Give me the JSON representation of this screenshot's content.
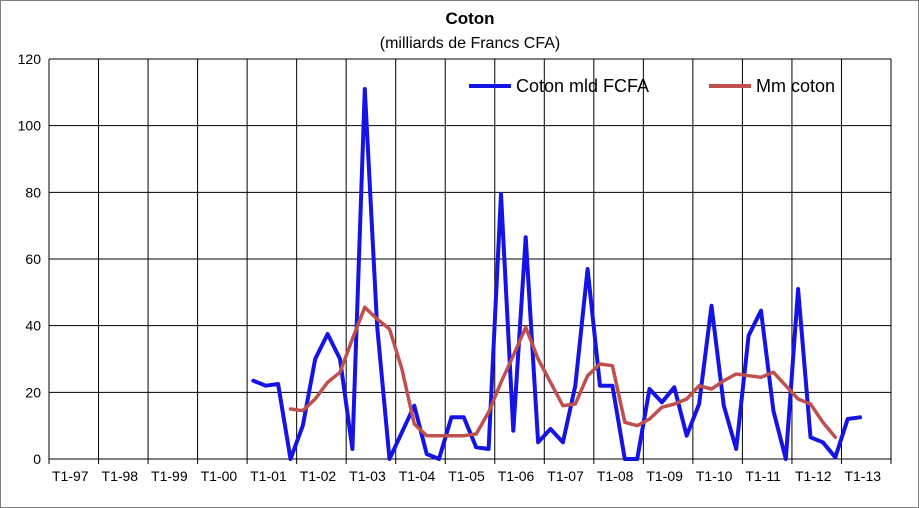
{
  "chart_data": {
    "type": "line",
    "title": "Coton",
    "subtitle": "(milliards de Francs CFA)",
    "xlabel": "",
    "ylabel": "",
    "ylim": [
      0,
      120
    ],
    "yticks": [
      0,
      20,
      40,
      60,
      80,
      100,
      120
    ],
    "grid": true,
    "legend_position": "top-right",
    "x_tick_labels": [
      "T1-97",
      "T1-98",
      "T1-99",
      "T1-00",
      "T1-01",
      "T1-02",
      "T1-03",
      "T1-04",
      "T1-05",
      "T1-06",
      "T1-07",
      "T1-08",
      "T1-09",
      "T1-10",
      "T1-11",
      "T1-12",
      "T1-13"
    ],
    "periods_per_label": 4,
    "series": [
      {
        "name": "Coton mld FCFA",
        "color": "#1414e6",
        "start_index": 16,
        "values": [
          23.5,
          22,
          22.5,
          0,
          10,
          30,
          37.5,
          30,
          3,
          111,
          40,
          0,
          8,
          16,
          1.5,
          0,
          12.5,
          12.5,
          3.5,
          3,
          79.5,
          8.5,
          66.5,
          5,
          9,
          5,
          22,
          57,
          22,
          22,
          0,
          0,
          21,
          17,
          21.5,
          7,
          16.5,
          46,
          16,
          3,
          37,
          44.5,
          14.5,
          0,
          51,
          6.5,
          5,
          0.5,
          12,
          12.5
        ]
      },
      {
        "name": "Mm coton",
        "color": "#c0504d",
        "start_index": 19,
        "values": [
          15,
          14.5,
          18,
          23,
          26,
          36,
          45.5,
          42,
          39,
          27,
          10.5,
          7,
          7,
          7,
          7,
          7.5,
          14,
          23,
          31,
          39.5,
          30,
          23,
          16,
          16.5,
          25,
          28.5,
          28,
          11,
          10,
          12,
          15.5,
          16.5,
          18,
          22,
          21,
          23.5,
          25.5,
          25,
          24.5,
          26,
          22,
          18,
          16.5,
          11,
          6.5
        ]
      }
    ]
  }
}
